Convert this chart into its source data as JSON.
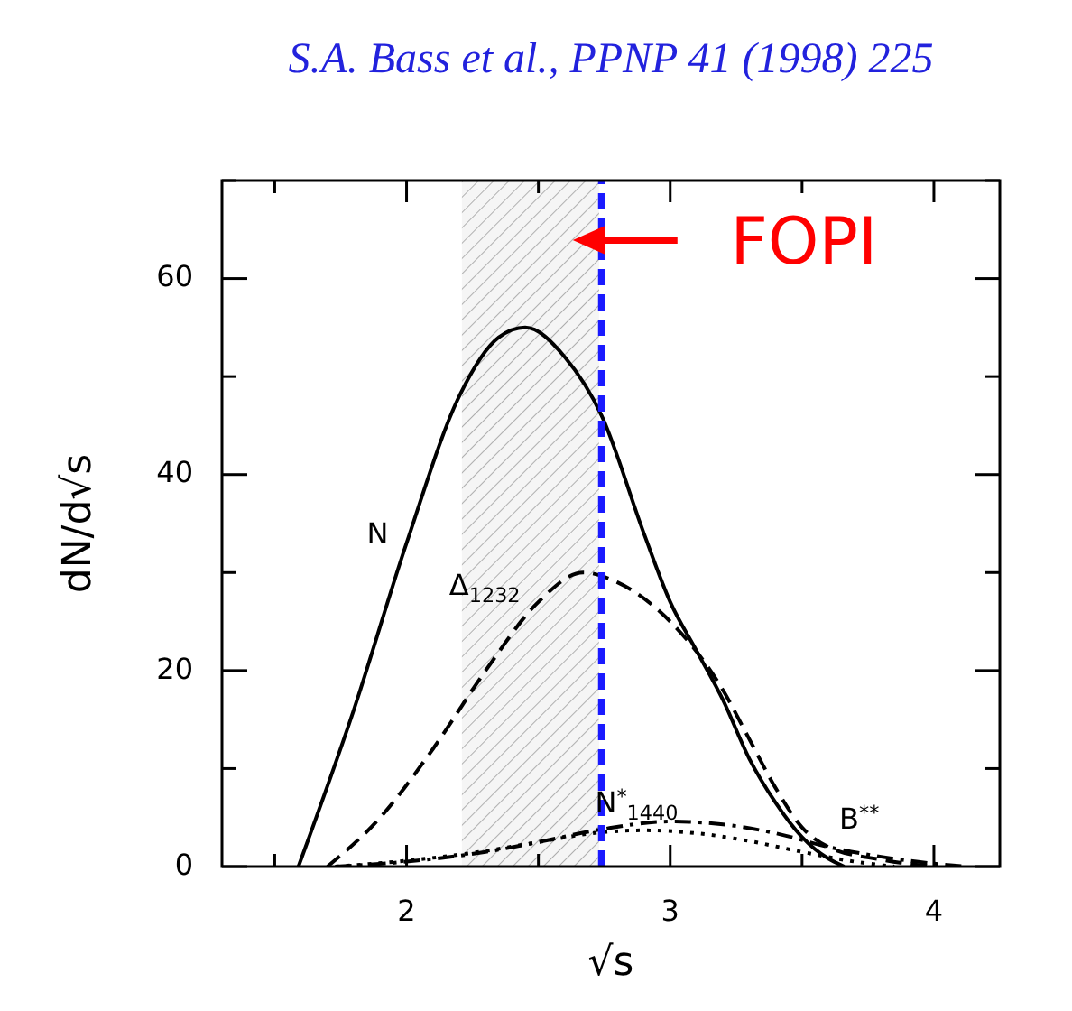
{
  "chart_data": {
    "type": "line",
    "title": "S.A. Bass et al., PPNP 41 (1998) 225",
    "xlabel": "√s",
    "ylabel": "dN/d√s",
    "xlim": [
      1.3,
      4.25
    ],
    "ylim": [
      0,
      70
    ],
    "xticks": [
      {
        "value": 1.5,
        "label": null
      },
      2,
      {
        "value": 2.5,
        "label": null
      },
      3,
      {
        "value": 3.5,
        "label": null
      },
      4
    ],
    "yticks": [
      0,
      {
        "value": 10,
        "label": null
      },
      20,
      {
        "value": 30,
        "label": null
      },
      40,
      {
        "value": 50,
        "label": null
      },
      60,
      {
        "value": 70,
        "label": null
      }
    ],
    "marker": "none",
    "series": [
      {
        "name": "N",
        "color": "#000000",
        "line_style": "solid",
        "x": [
          1.59,
          1.8,
          2.0,
          2.2,
          2.35,
          2.45,
          2.6,
          2.74,
          2.9,
          3.0,
          3.1,
          3.2,
          3.3,
          3.4,
          3.5,
          3.6,
          3.66
        ],
        "values": [
          0,
          16,
          33,
          48,
          54,
          55,
          52,
          46,
          34,
          27,
          22,
          17,
          11,
          6.5,
          3,
          0.8,
          0
        ]
      },
      {
        "name": "Δ$_{1232}$",
        "color": "#000000",
        "line_style": "dashed",
        "x": [
          1.7,
          1.9,
          2.1,
          2.3,
          2.5,
          2.67,
          2.8,
          3.0,
          3.2,
          3.3,
          3.4,
          3.5,
          3.6,
          3.8,
          4.0
        ],
        "values": [
          0,
          5,
          12,
          20,
          27,
          30,
          29,
          25,
          18,
          13,
          8,
          4,
          2,
          0.7,
          0
        ]
      },
      {
        "name": "N$^{*}$$_{1440}$",
        "color": "#000000",
        "line_style": "dotted",
        "x": [
          1.73,
          2.0,
          2.3,
          2.5,
          2.74,
          2.9,
          3.1,
          3.3,
          3.5,
          3.7,
          3.85
        ],
        "values": [
          0,
          0.6,
          1.6,
          2.5,
          3.5,
          3.7,
          3.4,
          2.6,
          1.5,
          0.5,
          0
        ]
      },
      {
        "name": "B$^{**}$",
        "color": "#000000",
        "line_style": "dashdot",
        "x": [
          1.73,
          2.0,
          2.3,
          2.5,
          2.74,
          3.0,
          3.2,
          3.4,
          3.6,
          3.8,
          4.0,
          4.12
        ],
        "values": [
          0,
          0.5,
          1.5,
          2.5,
          3.8,
          4.6,
          4.3,
          3.4,
          2.0,
          1.0,
          0.3,
          0
        ]
      }
    ],
    "bands": [
      {
        "axis": "x",
        "from": 2.21,
        "to": 2.73,
        "color": "#aaaaaa"
      }
    ],
    "ref_lines": [
      {
        "axis": "x",
        "value": 2.74,
        "color": "#1a1aff",
        "line_style": "dashed",
        "label": "FOPI"
      }
    ]
  }
}
